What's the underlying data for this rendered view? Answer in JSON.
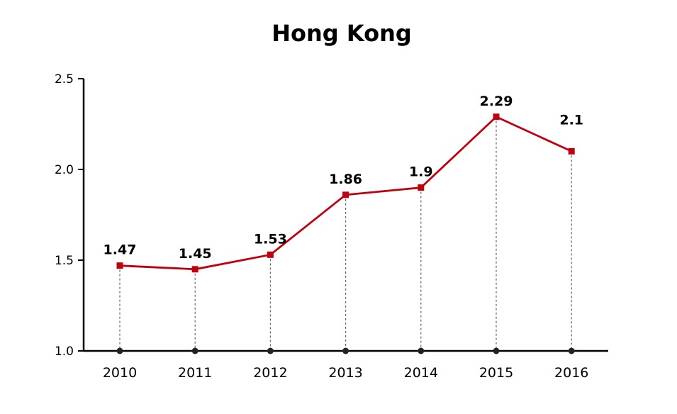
{
  "title": "Hong Kong",
  "chart_data": {
    "type": "line",
    "title": "Hong Kong",
    "categories": [
      "2010",
      "2011",
      "2012",
      "2013",
      "2014",
      "2015",
      "2016"
    ],
    "values": [
      1.47,
      1.45,
      1.53,
      1.86,
      1.9,
      2.29,
      2.1
    ],
    "data_labels": [
      "1.47",
      "1.45",
      "1.53",
      "1.86",
      "1.9",
      "2.29",
      "2.1"
    ],
    "y_ticks": [
      "1.0",
      "1.5",
      "2.0",
      "2.5"
    ],
    "ylim": [
      1.0,
      2.5
    ],
    "xlabel": "",
    "ylabel": "",
    "grid": false,
    "legend": "none",
    "line_color": "#c0000f",
    "marker_color": "#c0000f",
    "base_dot_color": "#222222"
  }
}
